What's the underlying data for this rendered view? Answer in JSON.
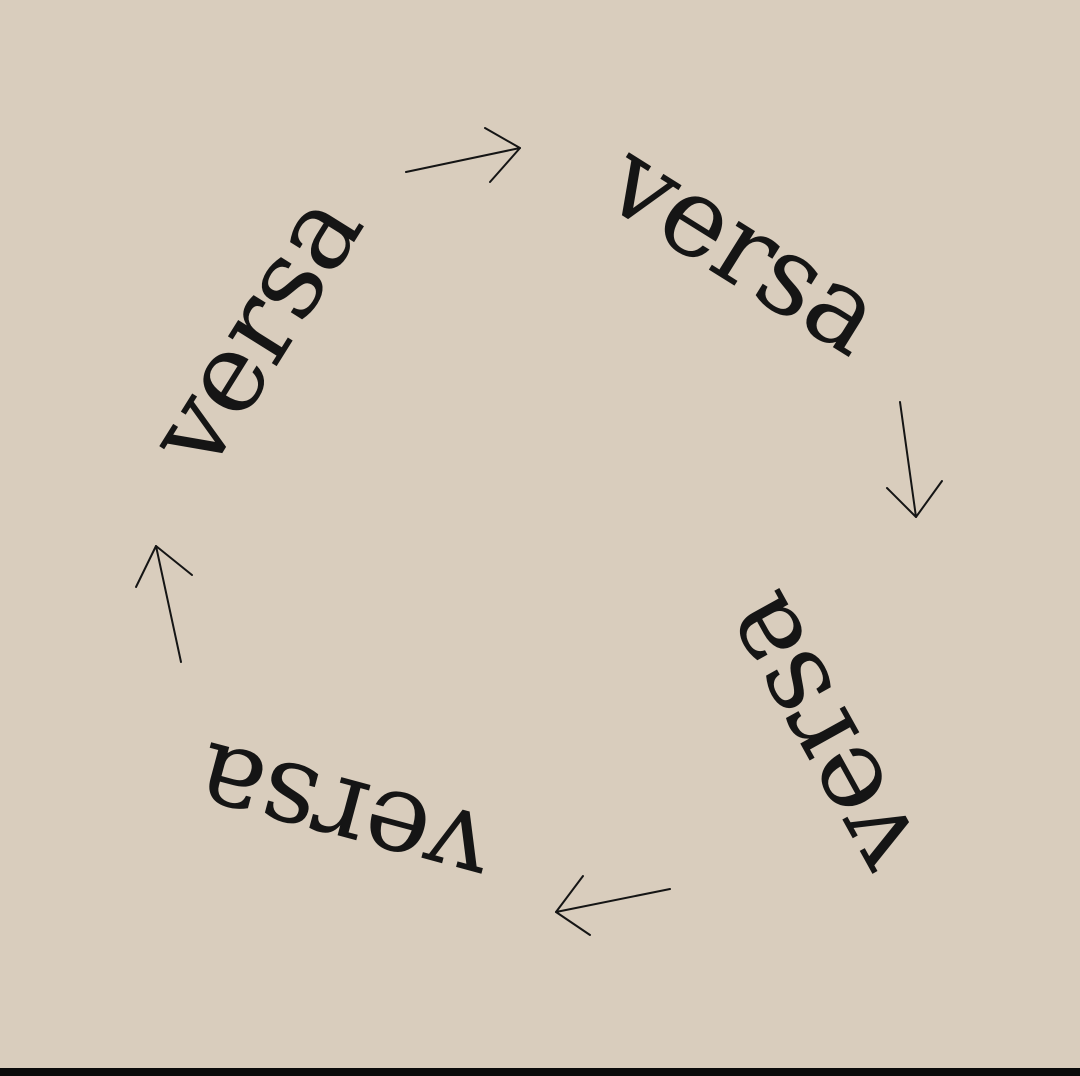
{
  "words": {
    "top_right": "versa",
    "bottom_right": "versa",
    "bottom_left": "versa",
    "top_left": "versa"
  },
  "colors": {
    "background": "#d9cdbd",
    "ink": "#151515",
    "bottom_bar": "#0b0b0b"
  }
}
